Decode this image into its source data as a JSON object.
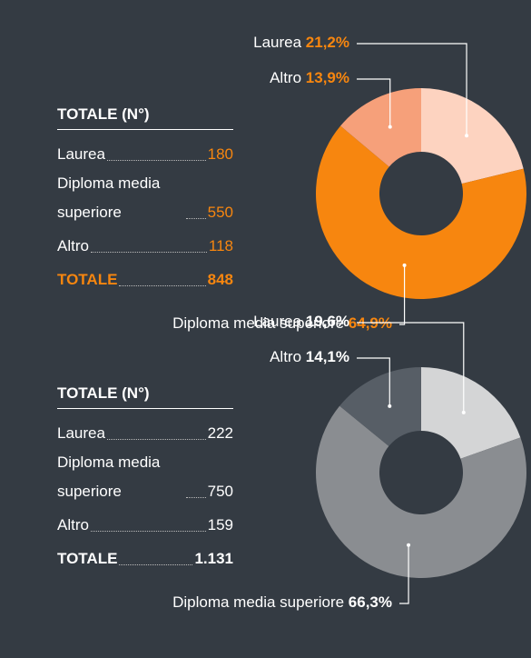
{
  "chart_data": [
    {
      "type": "pie",
      "donut": true,
      "categories": [
        "Laurea",
        "Diploma media superiore",
        "Altro"
      ],
      "values": [
        21.2,
        64.9,
        13.9
      ],
      "value_labels": [
        "21,2%",
        "64,9%",
        "13,9%"
      ],
      "colors": [
        "#fdd3c0",
        "#f7860f",
        "#f6a07a"
      ],
      "accent": "#f7860f",
      "table": {
        "title": "TOTALE (N°)",
        "rows": [
          [
            "Laurea",
            "180"
          ],
          [
            "Diploma media superiore",
            "550"
          ],
          [
            "Altro",
            "118"
          ],
          [
            "TOTALE",
            "848"
          ]
        ]
      }
    },
    {
      "type": "pie",
      "donut": true,
      "categories": [
        "Laurea",
        "Diploma media superiore",
        "Altro"
      ],
      "values": [
        19.6,
        66.3,
        14.1
      ],
      "value_labels": [
        "19,6%",
        "66,3%",
        "14,1%"
      ],
      "colors": [
        "#d4d5d6",
        "#8a8d91",
        "#575e66"
      ],
      "accent": "#ffffff",
      "table": {
        "title": "TOTALE (N°)",
        "rows": [
          [
            "Laurea",
            "222"
          ],
          [
            "Diploma media superiore",
            "750"
          ],
          [
            "Altro",
            "159"
          ],
          [
            "TOTALE",
            "1.131"
          ]
        ]
      }
    }
  ]
}
